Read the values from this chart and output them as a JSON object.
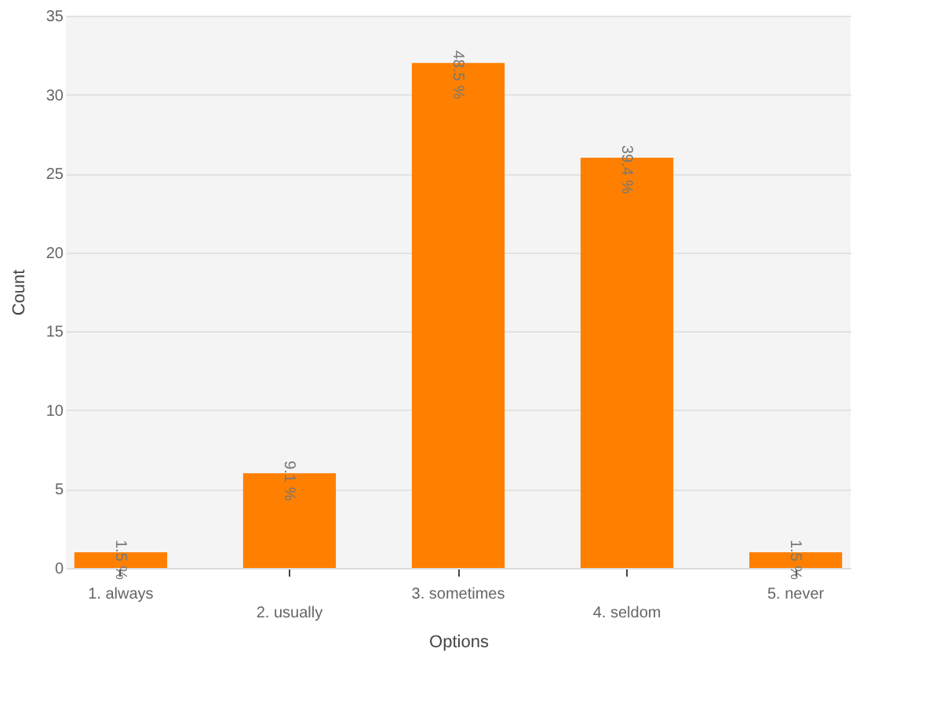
{
  "chart_data": {
    "type": "bar",
    "xlabel": "Options",
    "ylabel": "Count",
    "categories": [
      "1. always",
      "2. usually",
      "3. sometimes",
      "4. seldom",
      "5. never"
    ],
    "values": [
      1,
      6,
      32,
      26,
      1
    ],
    "annotations": [
      {
        "text": "1.5 %",
        "x": "1. always",
        "y": 1
      },
      {
        "text": "9.1 %",
        "x": "2. usually",
        "y": 6
      },
      {
        "text": "48.5 %",
        "x": "3. sometimes",
        "y": 32
      },
      {
        "text": "39.4 %",
        "x": "4. seldom",
        "y": 26
      },
      {
        "text": "1.5 %",
        "x": "5. never",
        "y": 1
      }
    ],
    "color": "#ff8000",
    "ylim": [
      0,
      35
    ],
    "yticks": [
      0,
      5,
      10,
      15,
      20,
      25,
      30,
      35
    ],
    "grid": "y"
  }
}
